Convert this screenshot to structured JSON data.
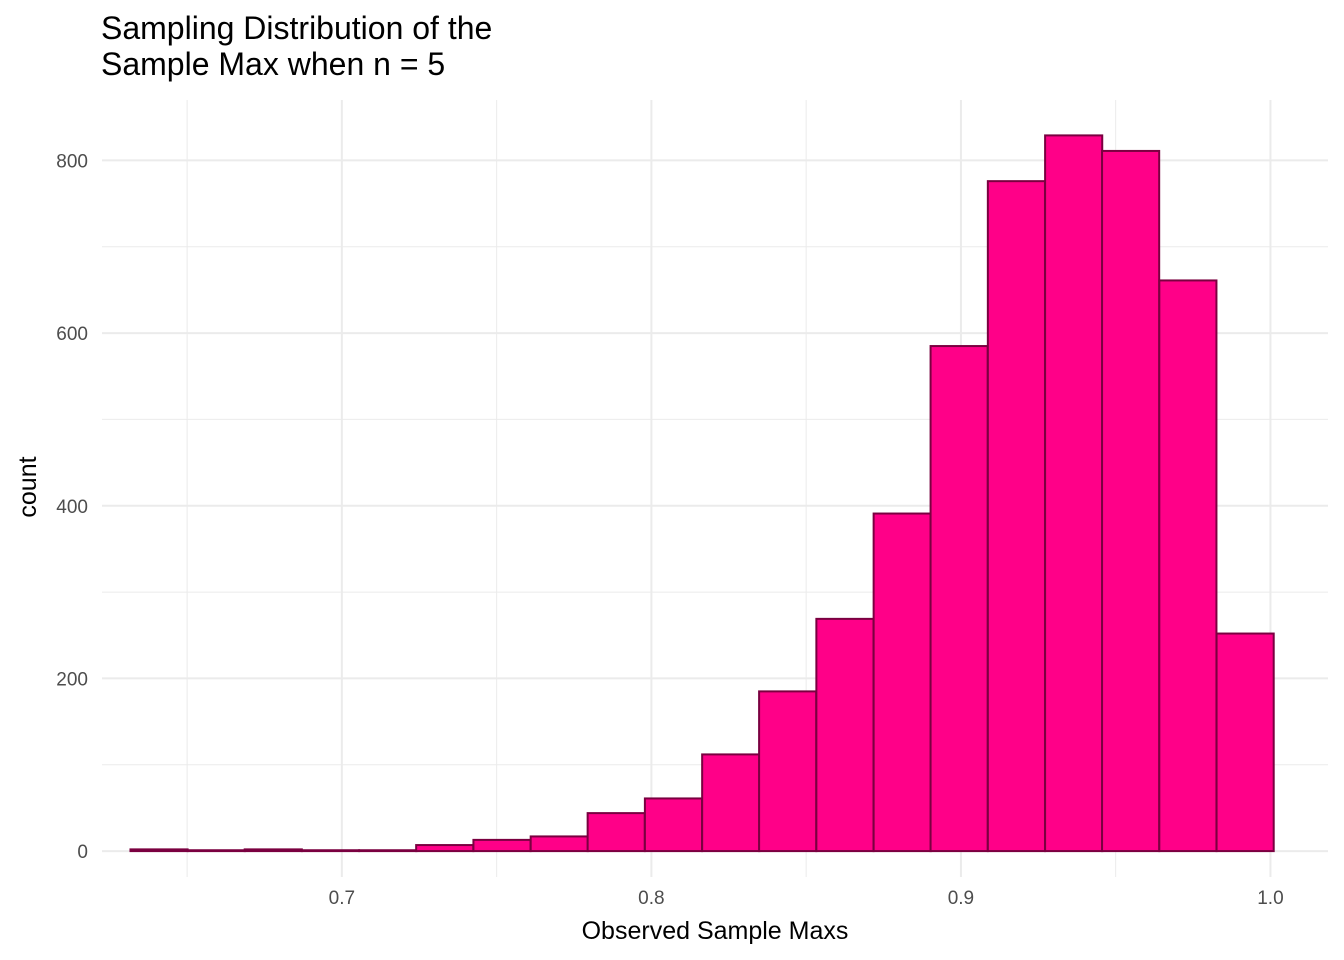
{
  "chart_data": {
    "type": "bar",
    "title_lines": [
      "Sampling Distribution of the",
      "Sample Max when n = 5"
    ],
    "xlabel": "Observed Sample Maxs",
    "ylabel": "count",
    "xlim": [
      0.6225,
      1.0186
    ],
    "ylim": [
      -30,
      870
    ],
    "x_ticks": [
      0.7,
      0.8,
      0.9,
      1.0
    ],
    "x_tick_labels": [
      "0.7",
      "0.8",
      "0.9",
      "1.0"
    ],
    "y_ticks": [
      0,
      200,
      400,
      600,
      800
    ],
    "y_tick_labels": [
      "0",
      "200",
      "400",
      "600",
      "800"
    ],
    "grid": true,
    "bin_width": 0.01846,
    "bin_starts": [
      0.6317,
      0.6502,
      0.6686,
      0.6871,
      0.7056,
      0.724,
      0.7425,
      0.761,
      0.7794,
      0.7979,
      0.8164,
      0.8348,
      0.8533,
      0.8718,
      0.8902,
      0.9087,
      0.9272,
      0.9456,
      0.9641,
      0.9826
    ],
    "values": [
      2,
      1,
      2,
      1,
      1,
      7,
      13,
      17,
      44,
      61,
      112,
      185,
      269,
      391,
      585,
      776,
      829,
      811,
      661,
      252
    ],
    "colors": {
      "fill": "#ff0088",
      "stroke": "#7a0040",
      "grid": "#ebebeb"
    }
  }
}
